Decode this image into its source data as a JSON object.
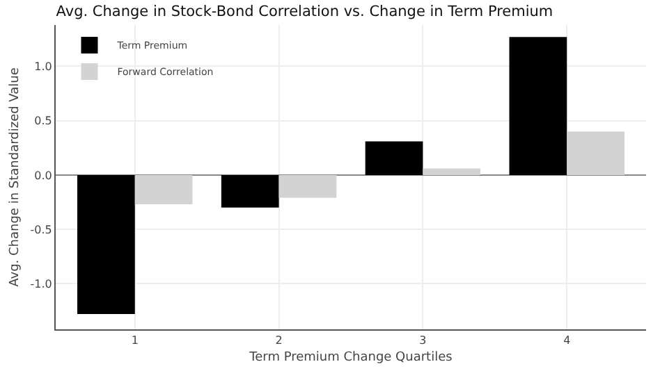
{
  "chart_data": {
    "type": "bar",
    "title": "Avg. Change in Stock-Bond Correlation vs. Change in Term Premium",
    "xlabel": "Term Premium Change Quartiles",
    "ylabel": "Avg. Change in Standardized Value",
    "categories": [
      "1",
      "2",
      "3",
      "4"
    ],
    "series": [
      {
        "name": "Term Premium",
        "color": "#000000",
        "values": [
          -1.28,
          -0.3,
          0.31,
          1.27
        ]
      },
      {
        "name": "Forward Correlation",
        "color": "#d3d3d3",
        "values": [
          -0.27,
          -0.21,
          0.06,
          0.4
        ]
      }
    ],
    "ylim": [
      -1.42,
      1.38
    ],
    "yticks": [
      {
        "value": -1,
        "label": "-1.0"
      },
      {
        "value": -0.5,
        "label": "-0.5"
      },
      {
        "value": 0,
        "label": "0.0"
      },
      0.5,
      {
        "value": 1,
        "label": "1.0"
      }
    ],
    "grid": true,
    "legend": "top left"
  }
}
